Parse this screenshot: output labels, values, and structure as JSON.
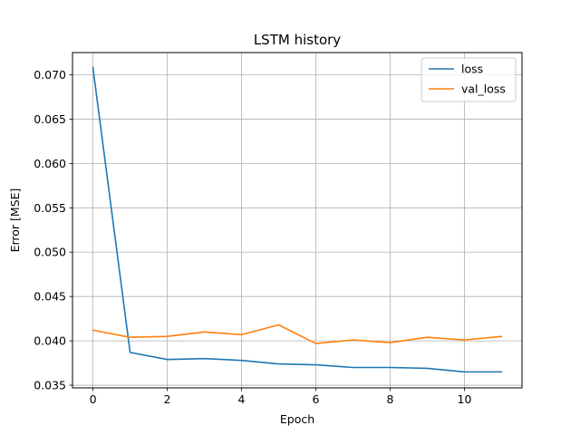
{
  "chart_data": {
    "type": "line",
    "title": "LSTM history",
    "xlabel": "Epoch",
    "ylabel": "Error [MSE]",
    "x": [
      0,
      1,
      2,
      3,
      4,
      5,
      6,
      7,
      8,
      9,
      10,
      11
    ],
    "xlim": [
      -0.55,
      11.55
    ],
    "ylim": [
      0.0347,
      0.0725
    ],
    "xticks": [
      0,
      2,
      4,
      6,
      8,
      10
    ],
    "yticks": [
      0.035,
      0.04,
      0.045,
      0.05,
      0.055,
      0.06,
      0.065,
      0.07
    ],
    "ytick_labels": [
      "0.035",
      "0.040",
      "0.045",
      "0.050",
      "0.055",
      "0.060",
      "0.065",
      "0.070"
    ],
    "grid": true,
    "legend_position": "upper right",
    "series": [
      {
        "name": "loss",
        "color": "#1f77b4",
        "values": [
          0.0708,
          0.0387,
          0.0379,
          0.038,
          0.0378,
          0.0374,
          0.0373,
          0.037,
          0.037,
          0.0369,
          0.0365,
          0.0365
        ]
      },
      {
        "name": "val_loss",
        "color": "#ff7f0e",
        "values": [
          0.0412,
          0.0404,
          0.0405,
          0.041,
          0.0407,
          0.0418,
          0.0397,
          0.0401,
          0.0398,
          0.0404,
          0.0401,
          0.0405
        ]
      }
    ]
  }
}
